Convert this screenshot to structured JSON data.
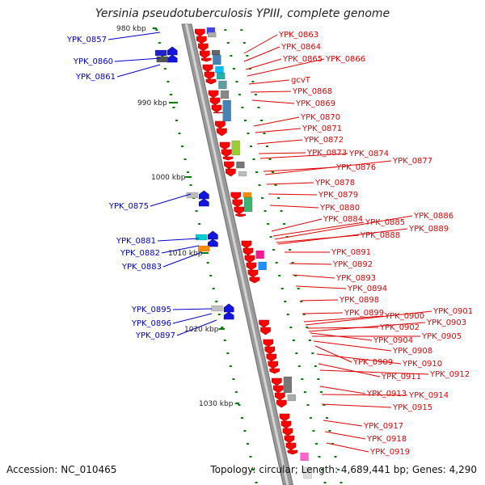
{
  "title": "Yersinia pseudotuberculosis YPIII, complete genome",
  "footer": {
    "accession": "Accession: NC_010465",
    "summary": "Topology: circular; Length: 4,689,441 bp; Genes: 4,290"
  },
  "colors": {
    "forward_label": "#0000cc",
    "reverse_label": "#e00000",
    "forward_arrow": "#1515e0",
    "reverse_arrow": "#ff0000",
    "backbone": "#999999",
    "ticks": "#008000"
  },
  "scale_labels": [
    "980 kbp",
    "990 kbp",
    "1000 kbp",
    "1010 kbp",
    "1020 kbp",
    "1030 kbp"
  ],
  "forward_genes": [
    "YPK_0857",
    "YPK_0860",
    "YPK_0861",
    "YPK_0875",
    "YPK_0881",
    "YPK_0882",
    "YPK_0883",
    "YPK_0895",
    "YPK_0896",
    "YPK_0897"
  ],
  "reverse_genes": [
    "YPK_0863",
    "YPK_0864",
    "YPK_0865",
    "YPK_0866",
    "gcvT",
    "YPK_0868",
    "YPK_0869",
    "YPK_0870",
    "YPK_0871",
    "YPK_0872",
    "YPK_0873",
    "YPK_0874",
    "YPK_0876",
    "YPK_0877",
    "YPK_0878",
    "YPK_0879",
    "YPK_0880",
    "YPK_0884",
    "YPK_0885",
    "YPK_0886",
    "YPK_0888",
    "YPK_0889",
    "YPK_0891",
    "YPK_0892",
    "YPK_0893",
    "YPK_0894",
    "YPK_0898",
    "YPK_0899",
    "YPK_0900",
    "YPK_0901",
    "YPK_0902",
    "YPK_0903",
    "YPK_0904",
    "YPK_0905",
    "YPK_0908",
    "YPK_0909",
    "YPK_0910",
    "YPK_0911",
    "YPK_0912",
    "YPK_0913",
    "YPK_0914",
    "YPK_0915",
    "YPK_0917",
    "YPK_0918",
    "YPK_0919"
  ]
}
